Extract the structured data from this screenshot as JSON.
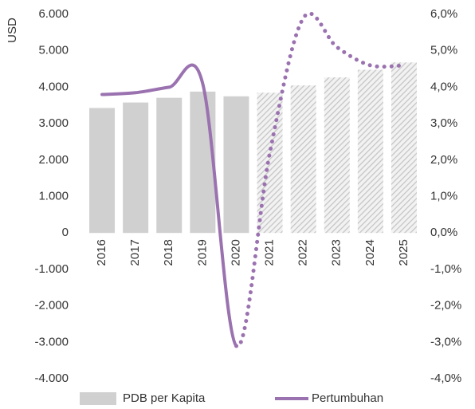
{
  "chart_data": {
    "type": "bar_line",
    "y_axis_label": "USD",
    "categories": [
      "2016",
      "2017",
      "2018",
      "2019",
      "2020",
      "2021",
      "2022",
      "2023",
      "2024",
      "2025"
    ],
    "series": [
      {
        "name": "PDB per Kapita",
        "type": "bar",
        "color": "#d0d0d0",
        "values": [
          3430,
          3580,
          3710,
          3880,
          3750,
          3850,
          4050,
          4270,
          4480,
          4680
        ],
        "styles": [
          "solid",
          "solid",
          "solid",
          "solid",
          "solid",
          "hatched",
          "hatched",
          "hatched",
          "hatched",
          "hatched"
        ]
      },
      {
        "name": "Pertumbuhan",
        "type": "line",
        "axis": "y2",
        "color": "#9b72b0",
        "values": [
          3.8,
          3.85,
          4.0,
          4.1,
          -3.1,
          2.2,
          5.9,
          5.1,
          4.6,
          4.6
        ],
        "styles": [
          "solid",
          "solid",
          "solid",
          "solid",
          "solid",
          "dotted",
          "dotted",
          "dotted",
          "dotted",
          "dotted"
        ]
      }
    ],
    "ylim": [
      -4000,
      6000
    ],
    "yticks": [
      {
        "value": -4000,
        "label": "-4.000"
      },
      {
        "value": -3000,
        "label": "-3.000"
      },
      {
        "value": -2000,
        "label": "-2.000"
      },
      {
        "value": -1000,
        "label": "-1.000"
      },
      0,
      {
        "value": 1000,
        "label": "1.000"
      },
      {
        "value": 2000,
        "label": "2.000"
      },
      {
        "value": 3000,
        "label": "3.000"
      },
      {
        "value": 4000,
        "label": "4.000"
      },
      {
        "value": 5000,
        "label": "5.000"
      },
      {
        "value": 6000,
        "label": "6.000"
      }
    ],
    "y2lim": [
      -4,
      6
    ],
    "y2ticks": [
      {
        "value": -4,
        "label": "-4,0%"
      },
      {
        "value": -3,
        "label": "-3,0%"
      },
      {
        "value": -2,
        "label": "-2,0%"
      },
      {
        "value": -1,
        "label": "-1,0%"
      },
      {
        "value": 0,
        "label": "0,0%"
      },
      {
        "value": 1,
        "label": "1,0%"
      },
      {
        "value": 2,
        "label": "2,0%"
      },
      {
        "value": 3,
        "label": "3,0%"
      },
      {
        "value": 4,
        "label": "4,0%"
      },
      {
        "value": 5,
        "label": "5,0%"
      },
      {
        "value": 6,
        "label": "6,0%"
      }
    ],
    "legend": "bottom"
  }
}
